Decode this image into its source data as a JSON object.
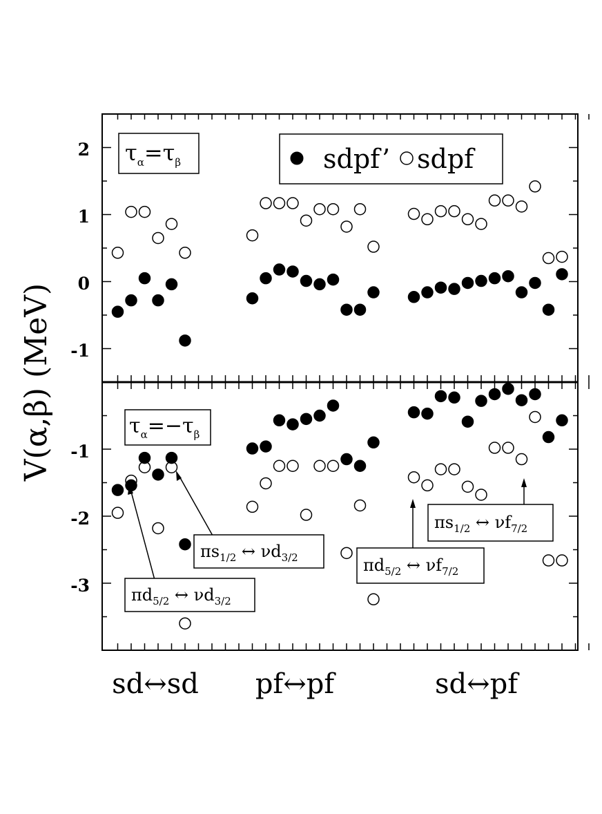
{
  "chart_data": {
    "type": "scatter",
    "ylabel": "V(α,β) (MeV)",
    "categories": [
      "sd↔sd",
      "pf↔pf",
      "sd↔pf"
    ],
    "legend": [
      {
        "name": "sdpf’",
        "marker": "filled-circle",
        "color": "#000000"
      },
      {
        "name": "sdpf",
        "marker": "open-circle",
        "color": "#000000"
      }
    ],
    "legend_position": "top-right (upper panel)",
    "panels": [
      {
        "id": "upper",
        "label": {
          "main": "τ",
          "sub1": "α",
          "eq": "=τ",
          "sub2": "β"
        },
        "ylim": [
          -1.5,
          2.5
        ],
        "yticks": [
          "2",
          "1",
          "0",
          "-1"
        ],
        "x": [
          1,
          2,
          3,
          4,
          5,
          6,
          7,
          11,
          12,
          13,
          14,
          15,
          16,
          17,
          18,
          19,
          20,
          21,
          23,
          24,
          25,
          26,
          27,
          28,
          29,
          30,
          31,
          32,
          33,
          34,
          35,
          36
        ],
        "series": [
          {
            "name": "sdpf’",
            "values": [
              -0.45,
              -0.28,
              0.05,
              -0.28,
              -0.04,
              -0.88,
              null,
              -0.25,
              0.05,
              0.18,
              0.15,
              0.01,
              -0.04,
              0.03,
              -0.42,
              -0.42,
              -0.16,
              null,
              -0.23,
              -0.16,
              -0.09,
              -0.11,
              -0.02,
              0.01,
              0.05,
              0.08,
              -0.16,
              -0.02,
              -0.42,
              0.11,
              null,
              null
            ]
          },
          {
            "name": "sdpf",
            "values": [
              0.43,
              1.04,
              1.04,
              0.65,
              0.86,
              0.43,
              null,
              0.69,
              1.17,
              1.17,
              1.17,
              0.91,
              1.08,
              1.08,
              0.82,
              1.08,
              0.52,
              null,
              1.01,
              0.93,
              1.05,
              1.05,
              0.93,
              0.86,
              1.21,
              1.21,
              1.12,
              1.42,
              0.35,
              0.37,
              null,
              null
            ]
          }
        ]
      },
      {
        "id": "lower",
        "label": {
          "main": "τ",
          "sub1": "α",
          "eq": "=−τ",
          "sub2": "β"
        },
        "ylim": [
          -4,
          0
        ],
        "yticks": [
          "-1",
          "-2",
          "-3"
        ],
        "x": [
          1,
          2,
          3,
          4,
          5,
          6,
          7,
          11,
          12,
          13,
          14,
          15,
          16,
          17,
          18,
          19,
          20,
          21,
          23,
          24,
          25,
          26,
          27,
          28,
          29,
          30,
          31,
          32,
          33,
          34,
          35,
          36
        ],
        "series": [
          {
            "name": "sdpf’",
            "values": [
              -1.61,
              -1.54,
              -1.13,
              -1.38,
              -1.13,
              -2.42,
              null,
              -0.99,
              -0.96,
              -0.57,
              -0.63,
              -0.55,
              -0.5,
              -0.35,
              -1.15,
              -1.25,
              -0.9,
              null,
              -0.45,
              -0.47,
              -0.21,
              -0.23,
              -0.59,
              -0.28,
              -0.18,
              -0.1,
              -0.27,
              -0.18,
              -0.82,
              -0.57,
              null,
              null
            ]
          },
          {
            "name": "sdpf",
            "values": [
              -1.95,
              -1.47,
              -1.27,
              -2.18,
              -1.27,
              -3.6,
              null,
              -1.86,
              -1.51,
              -1.25,
              -1.25,
              -1.98,
              -1.25,
              -1.25,
              -2.55,
              -1.84,
              -3.24,
              null,
              -1.42,
              -1.54,
              -1.3,
              -1.3,
              -1.56,
              -1.68,
              -0.98,
              -0.98,
              -1.15,
              -0.52,
              -2.66,
              -2.66,
              null,
              null
            ]
          }
        ],
        "annotations": [
          {
            "pre": "πd",
            "s1": "5/2",
            "mid": " ↔ νd",
            "s2": "3/2",
            "target": "sd↔sd, x=2"
          },
          {
            "pre": "πs",
            "s1": "1/2",
            "mid": " ↔ νd",
            "s2": "3/2",
            "target": "sd↔sd, x=5"
          },
          {
            "pre": "πd",
            "s1": "5/2",
            "mid": " ↔ νf",
            "s2": "7/2",
            "target": "sd↔pf, x=23"
          },
          {
            "pre": "πs",
            "s1": "1/2",
            "mid": " ↔ νf",
            "s2": "7/2",
            "target": "sd↔pf, x=31"
          }
        ]
      }
    ],
    "grid": false
  }
}
